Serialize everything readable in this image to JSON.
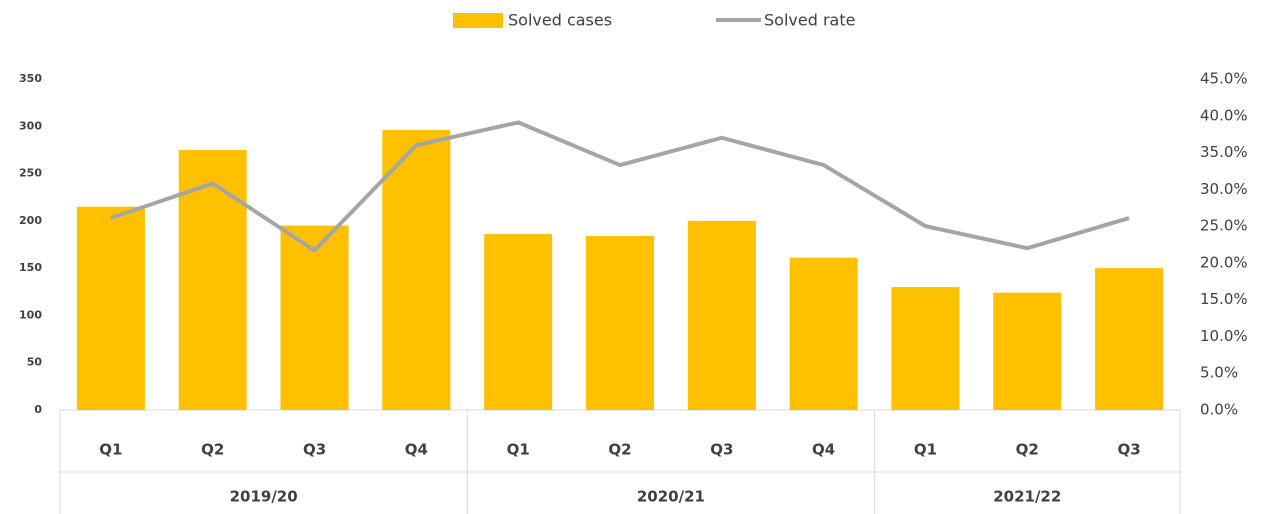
{
  "chart_data": {
    "type": "bar-line",
    "categories": [
      "Q1",
      "Q2",
      "Q3",
      "Q4",
      "Q1",
      "Q2",
      "Q3",
      "Q4",
      "Q1",
      "Q2",
      "Q3"
    ],
    "category_groups": [
      {
        "label": "2019/20",
        "span": 4
      },
      {
        "label": "2020/21",
        "span": 4
      },
      {
        "label": "2021/22",
        "span": 3
      }
    ],
    "series": [
      {
        "name": "Solved cases",
        "type": "bar",
        "color": "#FFC000",
        "values": [
          215,
          275,
          195,
          296,
          186,
          184,
          200,
          161,
          130,
          124,
          150
        ]
      },
      {
        "name": "Solved rate",
        "type": "line",
        "axis": "y2",
        "color": "#A5A5A5",
        "values": [
          26.1,
          30.8,
          21.7,
          36,
          39.1,
          33.3,
          37,
          33.3,
          25,
          22,
          26.1
        ]
      }
    ],
    "ylim": [
      0,
      350
    ],
    "yticks": [
      0,
      50,
      100,
      150,
      200,
      250,
      300,
      350
    ],
    "y2lim": [
      0,
      45
    ],
    "y2ticks": [
      {
        "value": 0,
        "label": "0.0%"
      },
      {
        "value": 5,
        "label": "5.0%"
      },
      {
        "value": 10,
        "label": "10.0%"
      },
      {
        "value": 15,
        "label": "15.0%"
      },
      {
        "value": 20,
        "label": "20.0%"
      },
      {
        "value": 25,
        "label": "25.0%"
      },
      {
        "value": 30,
        "label": "30.0%"
      },
      {
        "value": 35,
        "label": "35.0%"
      },
      {
        "value": 40,
        "label": "40.0%"
      },
      {
        "value": 45,
        "label": "45.0%"
      }
    ],
    "grid": false,
    "legend": "top"
  }
}
